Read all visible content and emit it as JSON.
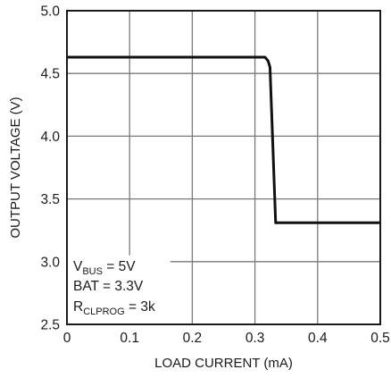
{
  "chart_data": {
    "type": "line",
    "xlabel": "LOAD CURRENT (mA)",
    "ylabel": "OUTPUT VOLTAGE (V)",
    "xlim": [
      0,
      0.5
    ],
    "ylim": [
      2.5,
      5.0
    ],
    "grid": true,
    "x_ticks": [
      "0",
      "0.1",
      "0.2",
      "0.3",
      "0.4",
      "0.5"
    ],
    "y_ticks": [
      "2.5",
      "3.0",
      "3.5",
      "4.0",
      "4.5",
      "5.0"
    ],
    "series": [
      {
        "x": [
          0,
          0.05,
          0.1,
          0.15,
          0.2,
          0.25,
          0.3,
          0.316,
          0.321,
          0.324,
          0.333,
          0.35,
          0.4,
          0.45,
          0.5
        ],
        "y": [
          4.63,
          4.63,
          4.63,
          4.63,
          4.63,
          4.63,
          4.63,
          4.63,
          4.6,
          4.55,
          3.31,
          3.31,
          3.31,
          3.31,
          3.31
        ]
      }
    ],
    "annotations": [
      {
        "main": "V",
        "sub": "BUS",
        "rest": " = 5V"
      },
      {
        "main": "BAT = 3.3V",
        "sub": "",
        "rest": ""
      },
      {
        "main": "R",
        "sub": "CLPROG",
        "rest": " = 3k"
      }
    ]
  }
}
